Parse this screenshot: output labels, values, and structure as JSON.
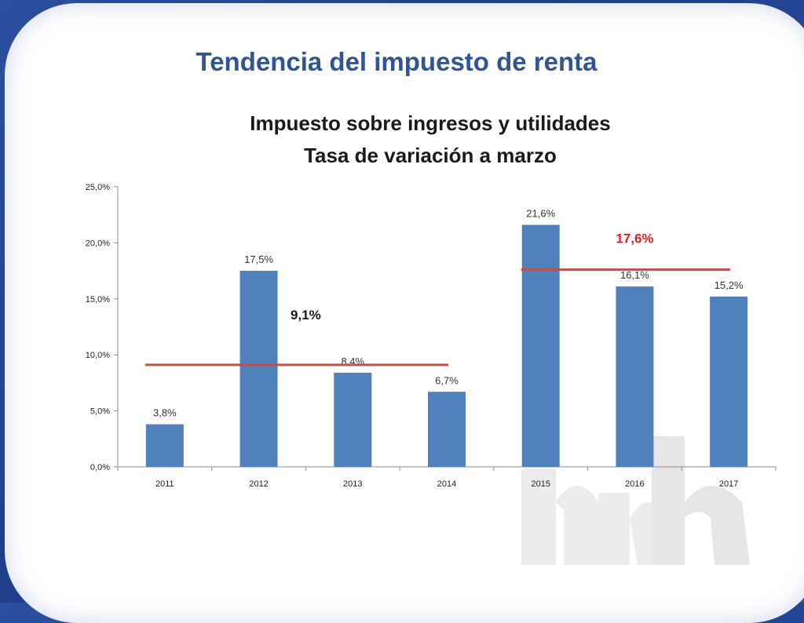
{
  "header": {
    "page_title": "Tendencia del impuesto de renta"
  },
  "chart_data": {
    "type": "bar",
    "title": "Impuesto sobre ingresos y utilidades",
    "subtitle": "Tasa de variación a marzo",
    "categories": [
      "2011",
      "2012",
      "2013",
      "2014",
      "2015",
      "2016",
      "2017"
    ],
    "values": [
      3.8,
      17.5,
      8.4,
      6.7,
      21.6,
      16.1,
      15.2
    ],
    "data_labels": [
      "3,8%",
      "17,5%",
      "8,4%",
      "6,7%",
      "21,6%",
      "16,1%",
      "15,2%"
    ],
    "ylim": [
      0,
      25
    ],
    "yticks": [
      0,
      5,
      10,
      15,
      20,
      25
    ],
    "ytick_labels": [
      "0,0%",
      "5,0%",
      "10,0%",
      "15,0%",
      "20,0%",
      "25,0%"
    ],
    "grid": false,
    "legend": "none",
    "bar_color": "#4f81bd",
    "averages": [
      {
        "from": "2011",
        "to": "2014",
        "value": 9.1,
        "label": "9,1%",
        "color": "#c0504d",
        "label_color": "#1a1a1a"
      },
      {
        "from": "2015",
        "to": "2017",
        "value": 17.6,
        "label": "17,6%",
        "color": "#c0504d",
        "label_color": "#e02020"
      }
    ]
  }
}
